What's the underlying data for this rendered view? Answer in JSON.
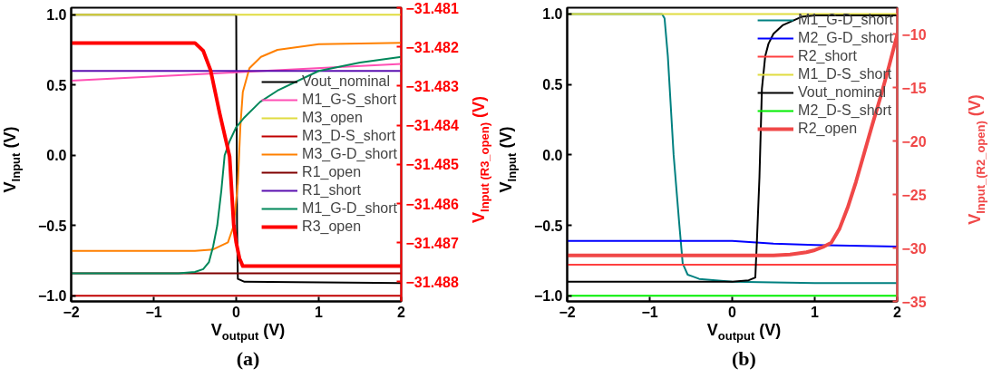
{
  "chart_data": [
    {
      "type": "line",
      "title": "(a)",
      "xlabel": "V$_{output}$ (V)",
      "ylabel": "V$_{Input}$ (V)",
      "y2label": "V$_{Input (R3_open)}$ (V)",
      "xlim": [
        -2,
        2
      ],
      "xticks": [
        -2,
        -1,
        0,
        1,
        2
      ],
      "ylim": [
        -1.04,
        1.05
      ],
      "yticks": [
        {
          "value": -1,
          "label": "−1.0"
        },
        {
          "value": -0.5,
          "label": "−0.5"
        },
        {
          "value": 0,
          "label": "0.0"
        },
        {
          "value": 0.5,
          "label": "0.5"
        },
        {
          "value": 1,
          "label": "1.0"
        }
      ],
      "y2lim": [
        -31.4885,
        -31.481
      ],
      "y2ticks": [
        -31.488,
        -31.487,
        -31.486,
        -31.485,
        -31.484,
        -31.483,
        -31.482,
        -31.481
      ],
      "legend": "right",
      "grid": false,
      "series": [
        {
          "name": "Vout_nominal",
          "color": "#000000",
          "x": [
            -2,
            -0.01,
            0,
            0.01,
            0.02,
            0.1,
            2
          ],
          "values": [
            1.0,
            1.0,
            0.99,
            -0.5,
            -0.88,
            -0.9,
            -0.91
          ]
        },
        {
          "name": "M1_G-S_short",
          "color": "#ff4fb4",
          "x": [
            -2,
            0,
            2
          ],
          "values": [
            0.53,
            0.59,
            0.65
          ]
        },
        {
          "name": "M3_open",
          "color": "#e0dc40",
          "x": [
            -2,
            2
          ],
          "values": [
            1.0,
            1.0
          ]
        },
        {
          "name": "M3_D-S_short",
          "color": "#c00000",
          "x": [
            -2,
            2
          ],
          "values": [
            -1.0,
            -1.0
          ]
        },
        {
          "name": "M3_G-D_short",
          "color": "#ff8000",
          "x": [
            -2,
            -0.5,
            -0.28,
            -0.1,
            -0.03,
            0.02,
            0.05,
            0.08,
            0.16,
            0.3,
            0.5,
            1,
            2
          ],
          "values": [
            -0.68,
            -0.68,
            -0.67,
            -0.62,
            -0.5,
            -0.2,
            0.2,
            0.45,
            0.62,
            0.7,
            0.75,
            0.79,
            0.8
          ]
        },
        {
          "name": "R1_open",
          "color": "#800000",
          "x": [
            -2,
            2
          ],
          "values": [
            -0.84,
            -0.84
          ]
        },
        {
          "name": "R1_short",
          "color": "#5a10b0",
          "x": [
            -2,
            2
          ],
          "values": [
            0.6,
            0.6
          ]
        },
        {
          "name": "M1_G-D_short",
          "color": "#00875a",
          "x": [
            -2,
            -0.7,
            -0.5,
            -0.4,
            -0.33,
            -0.28,
            -0.23,
            -0.18,
            -0.14,
            -0.08,
            0,
            0.1,
            0.29,
            0.5,
            1,
            1.5,
            2
          ],
          "values": [
            -0.84,
            -0.84,
            -0.83,
            -0.81,
            -0.76,
            -0.65,
            -0.5,
            -0.25,
            0.0,
            0.1,
            0.2,
            0.27,
            0.38,
            0.46,
            0.6,
            0.66,
            0.7
          ]
        },
        {
          "name": "R3_open",
          "color": "#ff0000",
          "axis": "y2",
          "x": [
            -2,
            -0.5,
            -0.4,
            -0.31,
            -0.2,
            -0.08,
            -0.03,
            0,
            0.04,
            0.08,
            2
          ],
          "values": [
            -31.4819,
            -31.4819,
            -31.4821,
            -31.4826,
            -31.4837,
            -31.4848,
            -31.48655,
            -31.487,
            -31.4874,
            -31.4876,
            -31.4876
          ]
        }
      ]
    },
    {
      "type": "line",
      "title": "(b)",
      "xlabel": "V$_{output}$ (V)",
      "ylabel": "V$_{Input}$ (V)",
      "y2label": "V$_{Input_(R2_open)}$ (V)",
      "xlim": [
        -2,
        2
      ],
      "xticks": [
        -2,
        -1,
        0,
        1,
        2
      ],
      "ylim": [
        -1.04,
        1.045
      ],
      "yticks": [
        {
          "value": -1,
          "label": "−1.0"
        },
        {
          "value": -0.5,
          "label": "−0.5"
        },
        {
          "value": 0,
          "label": "0.0"
        },
        {
          "value": 0.5,
          "label": "0.5"
        },
        {
          "value": 1,
          "label": "1.0"
        }
      ],
      "y2lim": [
        -35,
        -7.5
      ],
      "y2ticks": [
        -35,
        -30,
        -25,
        -20,
        -15,
        -10
      ],
      "legend": "top right",
      "grid": false,
      "series": [
        {
          "name": "M1_G-D_short",
          "color": "#008080",
          "x": [
            -2,
            -0.85,
            -0.82,
            -0.78,
            -0.74,
            -0.71,
            -0.64,
            -0.6,
            -0.54,
            -0.4,
            0,
            1,
            2
          ],
          "values": [
            1.0,
            1.0,
            0.97,
            0.7,
            0.3,
            0.0,
            -0.5,
            -0.77,
            -0.85,
            -0.88,
            -0.9,
            -0.91,
            -0.91
          ]
        },
        {
          "name": "M2_G-D_short",
          "color": "#0000ff",
          "x": [
            -2,
            0,
            0.5,
            1,
            2
          ],
          "values": [
            -0.61,
            -0.61,
            -0.63,
            -0.64,
            -0.65
          ]
        },
        {
          "name": "R2_short",
          "color": "#ff4040",
          "x": [
            -2,
            2
          ],
          "values": [
            -0.78,
            -0.78
          ]
        },
        {
          "name": "M1_D-S_short",
          "color": "#e0dc40",
          "x": [
            -2,
            2
          ],
          "values": [
            1.0,
            1.0
          ]
        },
        {
          "name": "Vout_nominal",
          "color": "#000000",
          "x": [
            -2,
            0,
            0.2,
            0.28,
            0.3,
            0.33,
            0.36,
            0.4,
            0.44,
            0.5,
            0.61,
            0.84,
            1.0,
            2
          ],
          "values": [
            -0.9,
            -0.9,
            -0.89,
            -0.87,
            -0.6,
            -0.16,
            0.47,
            0.7,
            0.79,
            0.86,
            0.92,
            0.98,
            0.99,
            0.99
          ]
        },
        {
          "name": "M2_D-S_short",
          "color": "#00ee00",
          "x": [
            -2,
            2
          ],
          "values": [
            -1.0,
            -1.0
          ]
        },
        {
          "name": "R2_open",
          "color": "#f04848",
          "axis": "y2",
          "x": [
            -2,
            0.5,
            0.7,
            0.9,
            1.0,
            1.1,
            1.2,
            1.3,
            1.4,
            1.5,
            1.6,
            1.7,
            1.8,
            1.9,
            2.0
          ],
          "values": [
            -30.7,
            -30.7,
            -30.6,
            -30.4,
            -30.2,
            -29.9,
            -29.5,
            -28.2,
            -26.2,
            -23.8,
            -21.1,
            -18.4,
            -15.8,
            -13.0,
            -10.0
          ]
        }
      ]
    }
  ]
}
